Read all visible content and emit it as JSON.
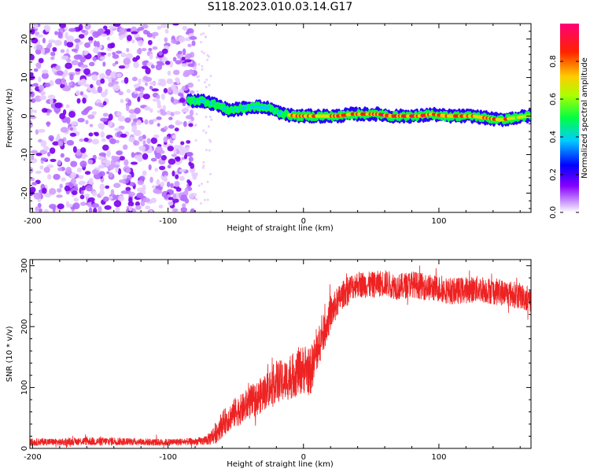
{
  "title": "S118.2023.010.03.14.G17",
  "chart_data": [
    {
      "type": "heatmap",
      "title": "S118.2023.010.03.14.G17",
      "xlabel": "Height of straight line (km)",
      "ylabel": "Frequency (Hz)",
      "xlim": [
        -202,
        168
      ],
      "ylim": [
        -25,
        24
      ],
      "xticks": [
        -200,
        -100,
        0,
        100
      ],
      "yticks": [
        -20,
        -10,
        0,
        10,
        20
      ],
      "colorbar": {
        "label": "Normalized spectral amplitude",
        "range": [
          0,
          1
        ],
        "ticks": [
          0.0,
          0.2,
          0.4,
          0.6,
          0.8
        ],
        "tick_labels": [
          "0.0",
          "0.2",
          "0.4",
          "0.6",
          "0.8"
        ],
        "colormap": [
          "#ffffff",
          "#8800ff",
          "#0000ff",
          "#00ccff",
          "#00ff44",
          "#aaff00",
          "#ffcc00",
          "#ff2200",
          "#ff0077"
        ]
      },
      "noise_region_x": [
        -202,
        -80
      ],
      "signal_track": {
        "x": [
          -85,
          -75,
          -65,
          -55,
          -45,
          -35,
          -25,
          -15,
          -5,
          5,
          15,
          25,
          35,
          45,
          55,
          65,
          75,
          85,
          95,
          105,
          115,
          125,
          135,
          145,
          155,
          165
        ],
        "freq": [
          4,
          4,
          3,
          1.5,
          2,
          2.5,
          2,
          0.5,
          0,
          0,
          0,
          0,
          0.5,
          0.5,
          0.5,
          0,
          0,
          0,
          0.5,
          0,
          0,
          0,
          -0.5,
          -1,
          -0.5,
          0
        ],
        "amplitude": [
          0.55,
          0.5,
          0.55,
          0.55,
          0.5,
          0.5,
          0.55,
          0.55,
          0.9,
          0.85,
          0.85,
          0.9,
          0.9,
          0.9,
          0.9,
          0.95,
          0.95,
          0.95,
          0.9,
          0.9,
          0.9,
          0.9,
          0.85,
          0.85,
          0.75,
          0.7
        ]
      }
    },
    {
      "type": "line",
      "xlabel": "Height of straight line (km)",
      "ylabel": "SNR (10 * v/v)",
      "xlim": [
        -202,
        168
      ],
      "ylim": [
        0,
        310
      ],
      "xticks": [
        -200,
        -100,
        0,
        100
      ],
      "yticks": [
        0,
        100,
        200,
        300
      ],
      "series": [
        {
          "color": "#ee2222",
          "x": [
            -202,
            -190,
            -180,
            -170,
            -160,
            -150,
            -140,
            -130,
            -120,
            -110,
            -100,
            -90,
            -80,
            -75,
            -70,
            -65,
            -60,
            -55,
            -50,
            -45,
            -40,
            -35,
            -30,
            -25,
            -20,
            -15,
            -10,
            -5,
            0,
            5,
            10,
            15,
            20,
            25,
            30,
            35,
            40,
            50,
            60,
            70,
            80,
            90,
            100,
            110,
            120,
            130,
            140,
            150,
            160,
            168
          ],
          "y": [
            10,
            11,
            10,
            11,
            12,
            11,
            12,
            11,
            11,
            10,
            10,
            11,
            11,
            12,
            15,
            25,
            40,
            50,
            60,
            65,
            75,
            80,
            90,
            100,
            110,
            110,
            115,
            125,
            130,
            125,
            160,
            190,
            220,
            240,
            255,
            265,
            270,
            268,
            272,
            265,
            270,
            265,
            262,
            258,
            260,
            262,
            258,
            255,
            250,
            245
          ],
          "noise": [
            6,
            6,
            6,
            6,
            7,
            7,
            7,
            6,
            6,
            6,
            6,
            6,
            6,
            7,
            10,
            18,
            22,
            22,
            25,
            25,
            28,
            28,
            30,
            30,
            35,
            35,
            35,
            40,
            40,
            40,
            35,
            30,
            28,
            25,
            22,
            22,
            22,
            22,
            22,
            22,
            22,
            22,
            22,
            22,
            22,
            22,
            22,
            22,
            22,
            22
          ]
        }
      ]
    }
  ]
}
